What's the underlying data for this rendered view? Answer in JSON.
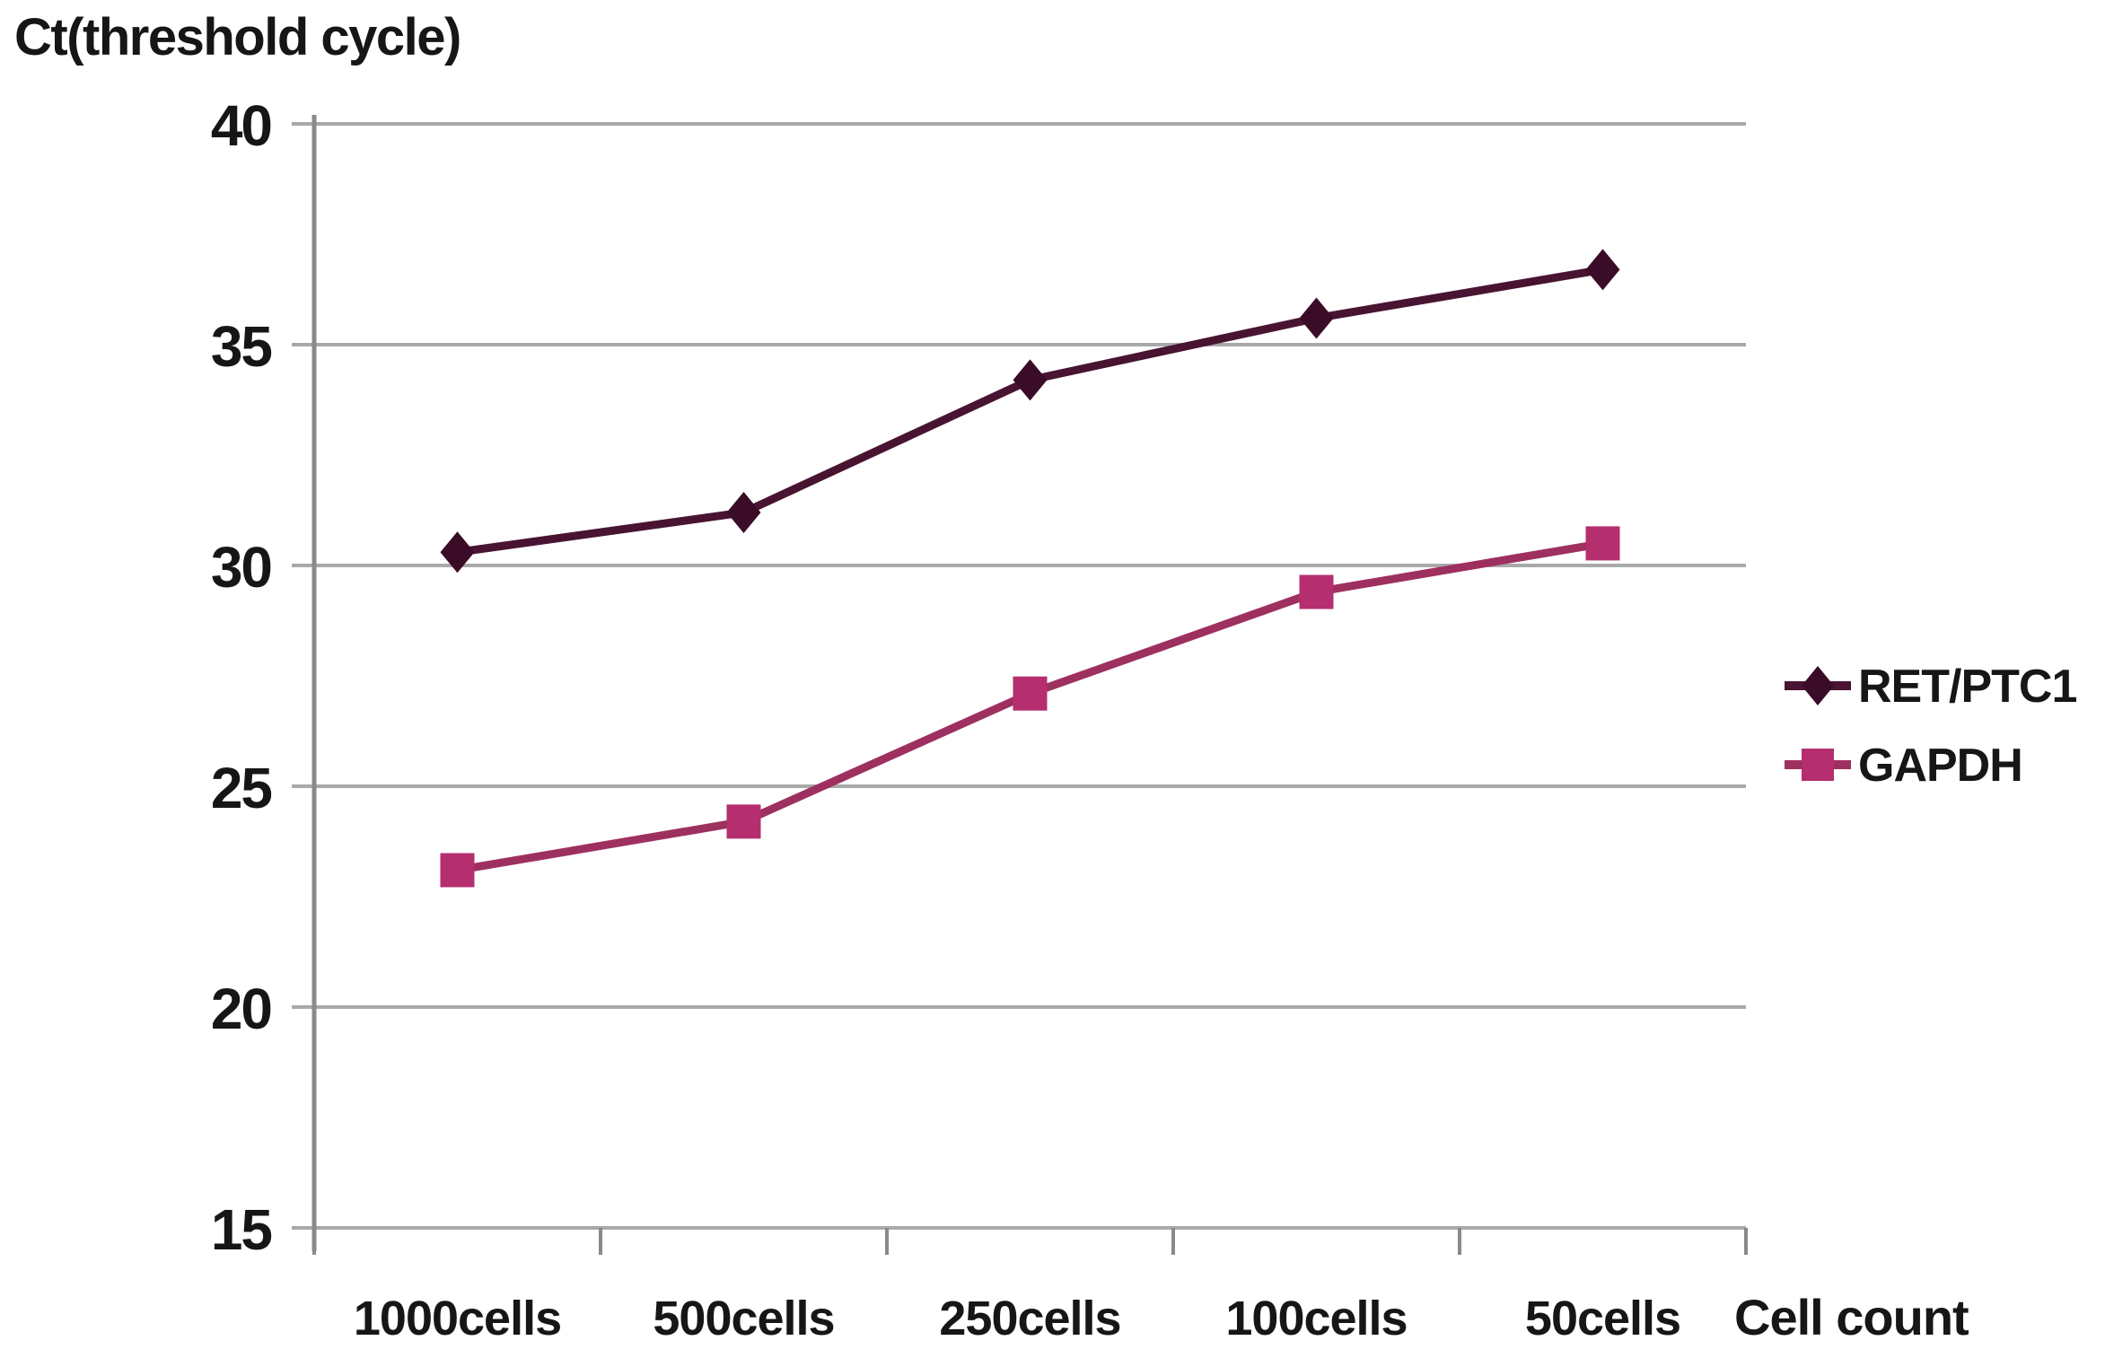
{
  "chart_data": {
    "type": "line",
    "title": "Ct(threshold cycle)",
    "xlabel": "Cell count",
    "ylabel": "Ct(threshold cycle)",
    "categories": [
      "1000cells",
      "500cells",
      "250cells",
      "100cells",
      "50cells"
    ],
    "series": [
      {
        "name": "RET/PTC1",
        "marker": "diamond",
        "line_color": "#481431",
        "marker_color": "#3a0c27",
        "values": [
          30.3,
          31.2,
          34.2,
          35.6,
          36.7
        ]
      },
      {
        "name": "GAPDH",
        "marker": "square",
        "line_color": "#9e3060",
        "marker_color": "#b52e6e",
        "values": [
          23.1,
          24.2,
          27.1,
          29.4,
          30.5
        ]
      }
    ],
    "ylim": [
      15,
      40
    ],
    "yticks": [
      40,
      35,
      30,
      25,
      20,
      15
    ],
    "grid": true,
    "legend_position": "right",
    "colors": {
      "gridline": "#a9a9a9",
      "axis": "#8a8a8a",
      "text": "#161616"
    }
  }
}
